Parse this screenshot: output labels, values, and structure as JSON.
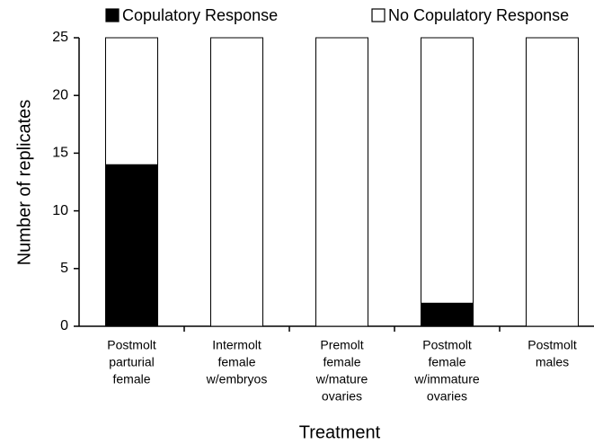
{
  "chart_data": {
    "type": "stacked_bar",
    "categories": [
      [
        "Postmolt",
        "parturial",
        "female"
      ],
      [
        "Intermolt",
        "female",
        "w/embryos"
      ],
      [
        "Premolt",
        "female",
        "w/mature",
        "ovaries"
      ],
      [
        "Postmolt",
        "female",
        "w/immature",
        "ovaries"
      ],
      [
        "Postmolt",
        "males"
      ]
    ],
    "series": [
      {
        "name": "Copulatory Response",
        "color": "#000000",
        "values": [
          14,
          0,
          0,
          2,
          0
        ]
      },
      {
        "name": "No Copulatory Response",
        "color": "#ffffff",
        "values": [
          11,
          25,
          25,
          23,
          25
        ]
      }
    ],
    "ylim": [
      0,
      25
    ],
    "yticks": [
      0,
      5,
      10,
      15,
      20,
      25
    ],
    "ylabel": "Number of replicates",
    "xlabel": "Treatment",
    "legend": "top"
  }
}
